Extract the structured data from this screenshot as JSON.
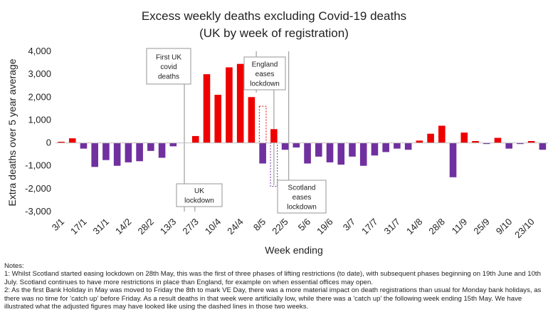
{
  "chart_data": {
    "type": "bar",
    "title": "Excess weekly deaths excluding Covid-19 deaths",
    "subtitle": "(UK by week of registration)",
    "xlabel": "Week ending",
    "ylabel": "Extra deaths over 5 year average",
    "ylim": [
      -3000,
      4000
    ],
    "y_ticks": [
      "4,000",
      "3,000",
      "2,000",
      "1,000",
      "0",
      "-1,000",
      "-2,000",
      "-3,000"
    ],
    "y_tick_values": [
      4000,
      3000,
      2000,
      1000,
      0,
      -1000,
      -2000,
      -3000
    ],
    "x_tick_labels": [
      "3/1",
      "17/1",
      "31/1",
      "14/2",
      "28/2",
      "13/3",
      "27/3",
      "10/4",
      "24/4",
      "8/5",
      "22/5",
      "5/6",
      "19/6",
      "3/7",
      "17/7",
      "31/7",
      "14/8",
      "28/8",
      "11/9",
      "25/9",
      "9/10",
      "23/10"
    ],
    "x_tick_index": [
      0,
      2,
      4,
      6,
      8,
      10,
      12,
      14,
      16,
      18,
      20,
      22,
      24,
      26,
      28,
      30,
      32,
      34,
      36,
      38,
      40,
      42
    ],
    "values": [
      50,
      200,
      -250,
      -1050,
      -750,
      -1000,
      -850,
      -800,
      -350,
      -650,
      -150,
      0,
      300,
      3000,
      2100,
      3300,
      3450,
      2000,
      -900,
      600,
      -300,
      -200,
      -900,
      -600,
      -850,
      -950,
      -600,
      -1000,
      -550,
      -400,
      -250,
      -300,
      100,
      400,
      750,
      -1500,
      450,
      80,
      -50,
      220,
      -250,
      -50,
      80,
      -300
    ],
    "adjusted_values": {
      "18": 1600,
      "19": -1900
    },
    "grid": false,
    "legend": "none",
    "colors": {
      "positive": "#ee0000",
      "negative": "#7030a0",
      "annotation_line": "#a6a6a6",
      "annotation_text": "#222222"
    }
  },
  "annotations": {
    "first_uk_covid_deaths": [
      "First UK",
      "covid",
      "deaths"
    ],
    "uk_lockdown": [
      "UK",
      "lockdown"
    ],
    "england_eases_lockdown": [
      "England",
      "eases",
      "lockdown"
    ],
    "scotland_eases_lockdown": [
      "Scotland",
      "eases",
      "lockdown"
    ]
  },
  "notes": {
    "heading": "Notes:",
    "note1": "1: Whilst Scotland started easing lockdown on 28th May, this was the first of three phases of lifting restrictions (to date), with subsequent phases beginning on 19th June and 10th July. Scotland continues to have more restrictions in place than England, for example on when essential offices may open.",
    "note2": "2: As the first Bank Holiday in May was moved to Friday the 8th to mark VE Day, there was a more material impact on death registrations than usual for Monday bank holidays, as there was no time for 'catch up' before Friday. As a result deaths in that week were artificially low, while there was a 'catch up' the following week ending 15th May. We have illustrated what the adjusted figures may have looked like using the dashed lines in those two weeks."
  }
}
